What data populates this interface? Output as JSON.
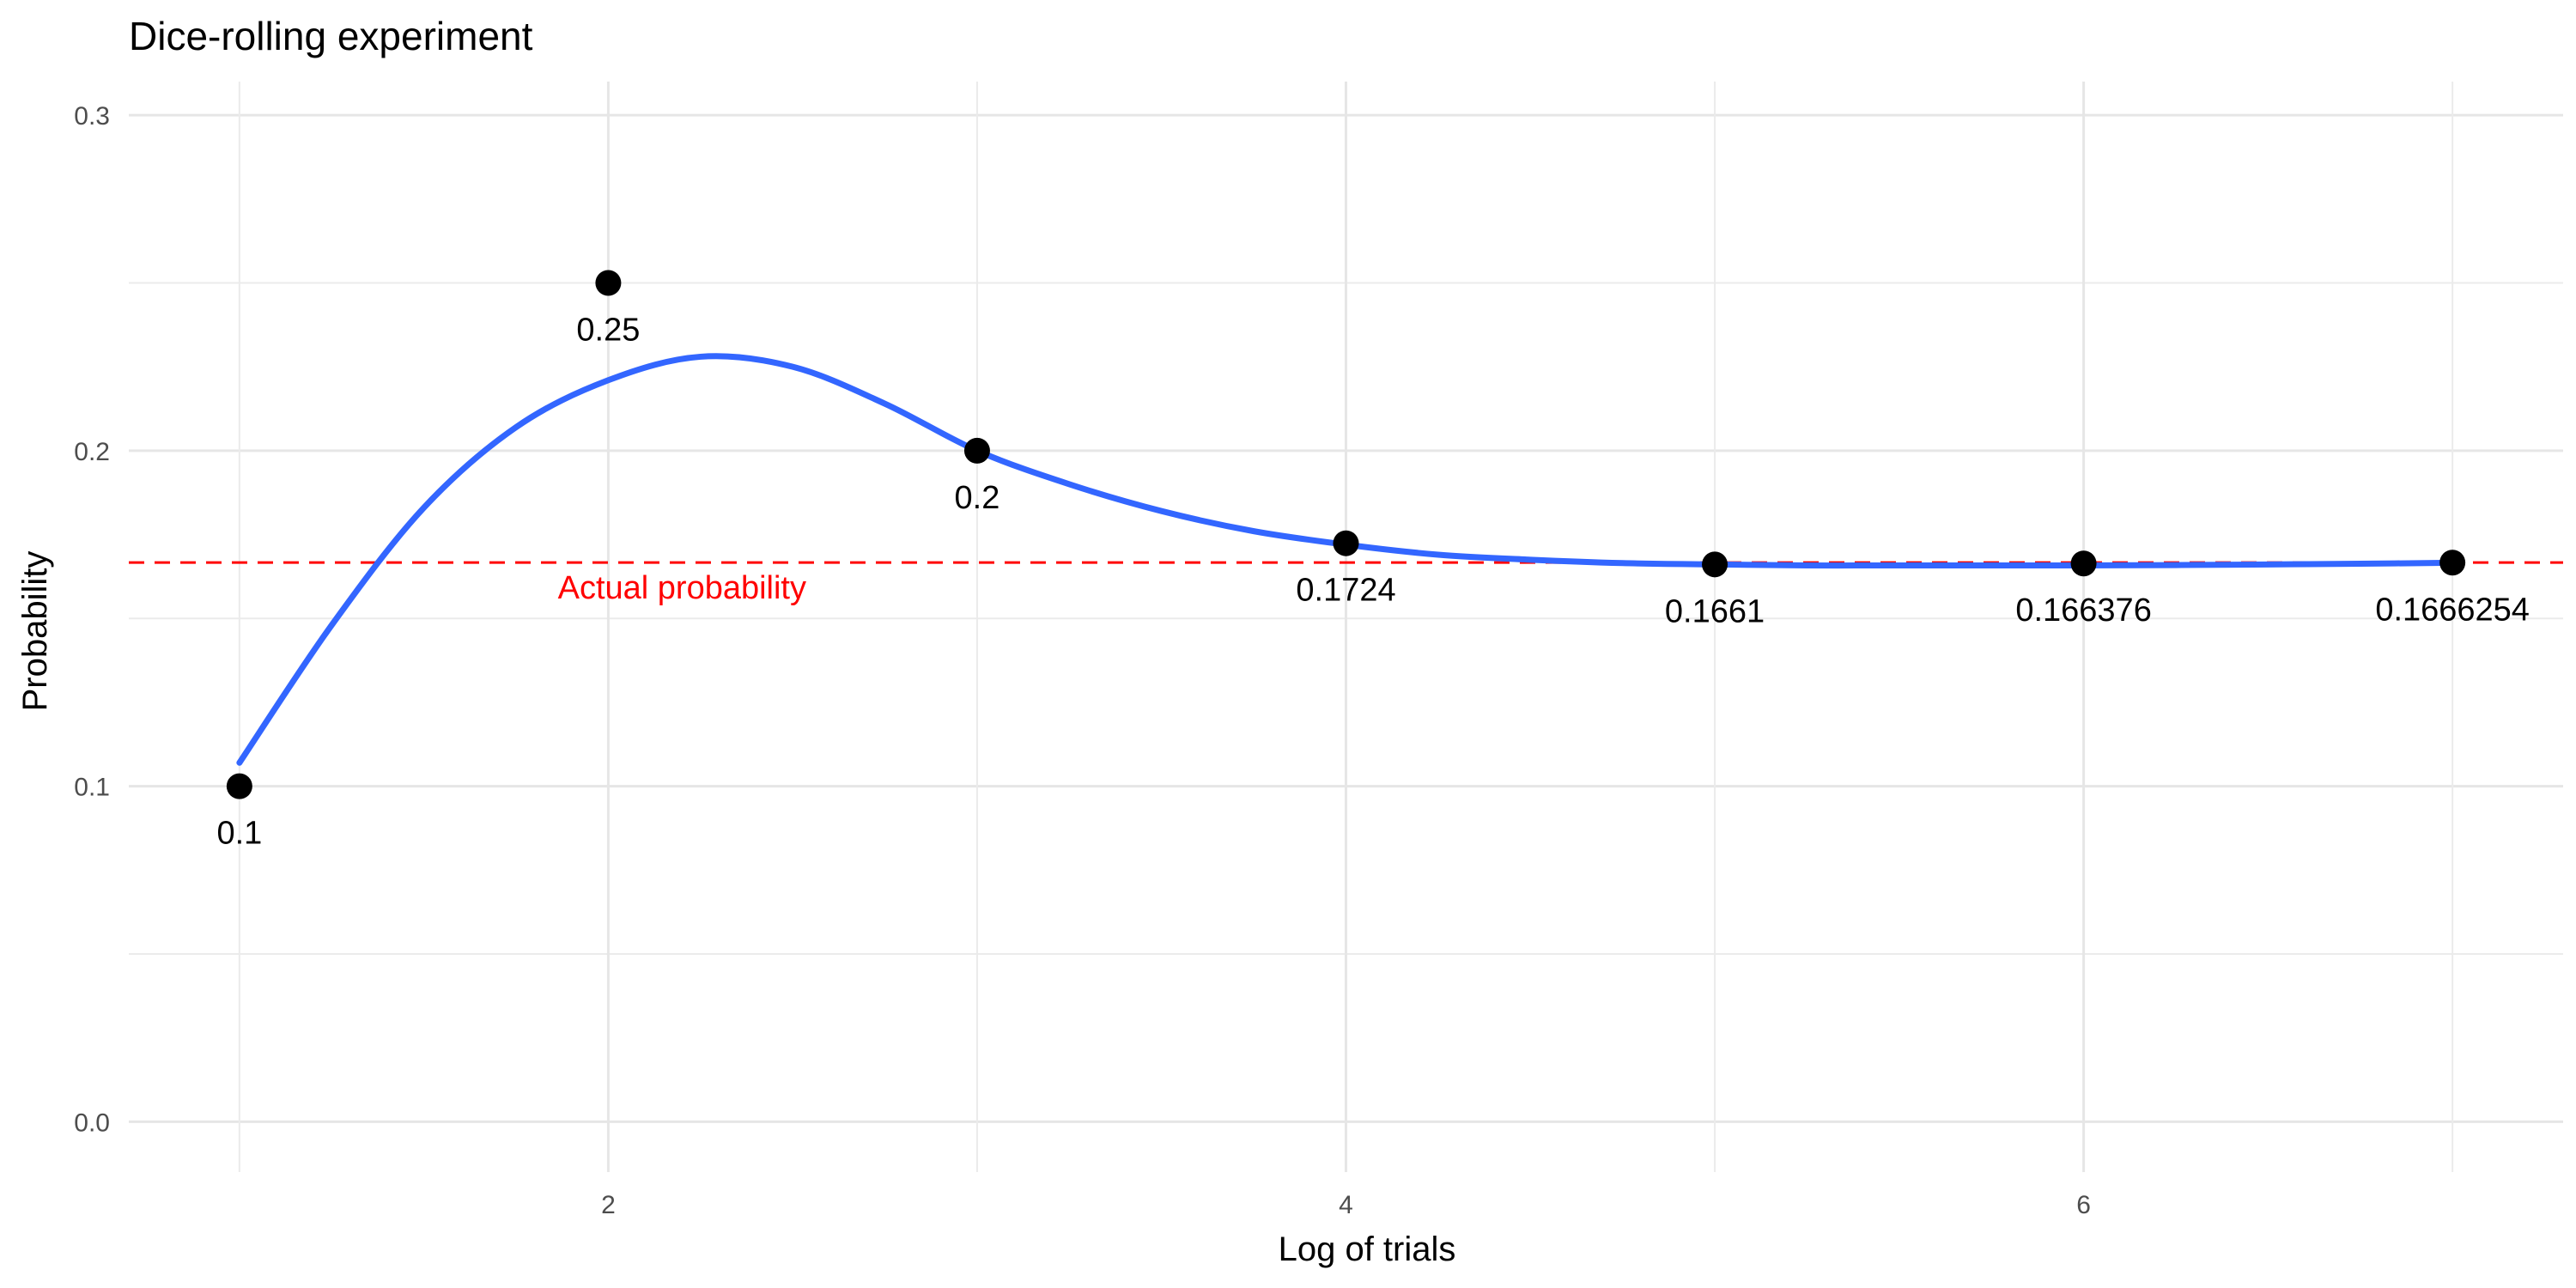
{
  "chart_data": {
    "type": "line",
    "title": "Dice-rolling experiment",
    "xlabel": "Log of trials",
    "ylabel": "Probability",
    "xlim": [
      0.7,
      7.3
    ],
    "ylim": [
      -0.015,
      0.31
    ],
    "x_ticks": [
      2,
      4,
      6
    ],
    "y_ticks": [
      0.0,
      0.1,
      0.2,
      0.3
    ],
    "y_tick_labels": [
      "0.0",
      "0.1",
      "0.2",
      "0.3"
    ],
    "grid": true,
    "points": {
      "x": [
        1,
        2,
        3,
        4,
        5,
        6,
        7
      ],
      "y": [
        0.1,
        0.25,
        0.2,
        0.1724,
        0.1661,
        0.166376,
        0.1666254
      ],
      "labels": [
        "0.1",
        "0.25",
        "0.2",
        "0.1724",
        "0.1661",
        "0.166376",
        "0.1666254"
      ],
      "color": "#000000"
    },
    "smooth_curve": {
      "color": "#3366FF",
      "x": [
        1.0,
        1.25,
        1.5,
        1.75,
        2.0,
        2.25,
        2.5,
        2.75,
        3.0,
        3.25,
        3.5,
        3.75,
        4.0,
        4.25,
        4.5,
        4.75,
        5.0,
        5.25,
        5.5,
        5.75,
        6.0,
        6.25,
        6.5,
        6.75,
        7.0
      ],
      "y": [
        0.107,
        0.148,
        0.183,
        0.207,
        0.221,
        0.228,
        0.225,
        0.214,
        0.2,
        0.19,
        0.182,
        0.176,
        0.172,
        0.169,
        0.1675,
        0.1665,
        0.1661,
        0.1658,
        0.1658,
        0.1658,
        0.1658,
        0.1659,
        0.1661,
        0.1663,
        0.1666
      ]
    },
    "reference_line": {
      "y": 0.1666667,
      "label": "Actual probability",
      "label_x": 2.2,
      "color": "#FF0000",
      "style": "dashed"
    }
  }
}
